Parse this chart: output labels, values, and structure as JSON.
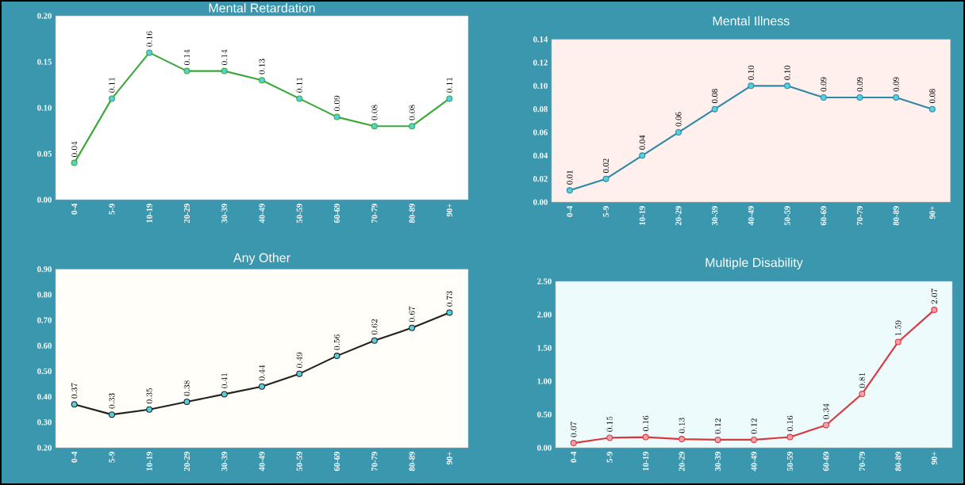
{
  "chart_data": [
    {
      "type": "line",
      "title": "Mental Retardation",
      "categories": [
        "0-4",
        "5-9",
        "10-19",
        "20-29",
        "30-39",
        "40-49",
        "50-59",
        "60-69",
        "70-79",
        "80-89",
        "90+"
      ],
      "series": [
        {
          "color": "#3aa83a",
          "values": [
            0.04,
            0.11,
            0.16,
            0.14,
            0.14,
            0.13,
            0.11,
            0.09,
            0.08,
            0.08,
            0.11
          ]
        }
      ],
      "ylim": [
        0,
        0.2
      ],
      "yticks": [
        {
          "value": 0,
          "label": "0.00"
        },
        {
          "value": 0.05,
          "label": "0.05"
        },
        {
          "value": 0.1,
          "label": "0.10"
        },
        {
          "value": 0.15,
          "label": "0.15"
        },
        {
          "value": 0.2,
          "label": "0.20"
        }
      ],
      "data_labels": true,
      "marker": "circle"
    },
    {
      "type": "line",
      "title": "Mental Illness",
      "categories": [
        "0-4",
        "5-9",
        "10-19",
        "20-29",
        "30-39",
        "40-49",
        "50-59",
        "60-69",
        "70-79",
        "80-89",
        "90+"
      ],
      "series": [
        {
          "color": "#2e8aa4",
          "values": [
            0.01,
            0.02,
            0.04,
            0.06,
            0.08,
            0.1,
            0.1,
            0.09,
            0.09,
            0.09,
            0.08
          ],
          "value_labels": [
            "0.01",
            "0.02",
            "0.04",
            "0.06",
            "0.08",
            "0.10",
            "0.10",
            "0.09",
            "0.09",
            "0.09",
            "0.08"
          ]
        }
      ],
      "ylim": [
        0,
        0.14
      ],
      "yticks": [
        {
          "value": 0,
          "label": "0.00"
        },
        {
          "value": 0.02,
          "label": "0.02"
        },
        {
          "value": 0.04,
          "label": "0.04"
        },
        {
          "value": 0.06,
          "label": "0.06"
        },
        {
          "value": 0.08,
          "label": "0.08"
        },
        {
          "value": 0.1,
          "label": "0.10"
        },
        {
          "value": 0.12,
          "label": "0.12"
        },
        {
          "value": 0.14,
          "label": "0.14"
        }
      ],
      "marker": "circle"
    },
    {
      "type": "line",
      "title": "Any Other",
      "categories": [
        "0-4",
        "5-9",
        "10-19",
        "20-29",
        "30-39",
        "40-49",
        "50-59",
        "60-69",
        "70-79",
        "80-89",
        "90+"
      ],
      "series": [
        {
          "color": "#222222",
          "values": [
            0.37,
            0.33,
            0.35,
            0.38,
            0.41,
            0.44,
            0.49,
            0.56,
            0.62,
            0.67,
            0.73
          ]
        }
      ],
      "ylim": [
        0.2,
        0.9
      ],
      "yticks": [
        {
          "value": 0.2,
          "label": "0.20"
        },
        {
          "value": 0.3,
          "label": "0.30"
        },
        {
          "value": 0.4,
          "label": "0.40"
        },
        {
          "value": 0.5,
          "label": "0.50"
        },
        {
          "value": 0.6,
          "label": "0.60"
        },
        {
          "value": 0.7,
          "label": "0.70"
        },
        {
          "value": 0.8,
          "label": "0.80"
        },
        {
          "value": 0.9,
          "label": "0.90"
        }
      ],
      "data_labels": true,
      "marker": "circle"
    },
    {
      "type": "line",
      "title": "Multiple Disability",
      "categories": [
        "0-4",
        "5-9",
        "10-19",
        "20-29",
        "30-39",
        "40-49",
        "50-59",
        "60-69",
        "70-79",
        "80-89",
        "90+"
      ],
      "series": [
        {
          "color": "#d9383f",
          "values": [
            0.07,
            0.15,
            0.16,
            0.13,
            0.12,
            0.12,
            0.16,
            0.34,
            0.81,
            1.59,
            2.07
          ]
        }
      ],
      "ylim": [
        0,
        2.5
      ],
      "yticks": [
        {
          "value": 0,
          "label": "0.00"
        },
        {
          "value": 0.5,
          "label": "0.50"
        },
        {
          "value": 1,
          "label": "1.00"
        },
        {
          "value": 1.5,
          "label": "1.50"
        },
        {
          "value": 2,
          "label": "2.00"
        },
        {
          "value": 2.5,
          "label": "2.50"
        }
      ],
      "data_labels": true,
      "marker": "circle"
    }
  ]
}
